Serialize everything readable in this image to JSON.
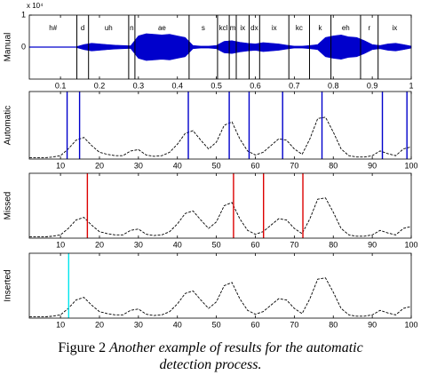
{
  "chart_data": [
    {
      "type": "waveform",
      "ylabel": "Manual",
      "multiplier_label": "x 10⁴",
      "color": "#0000cc",
      "xlim": [
        0.02,
        1
      ],
      "xticks": [
        0.1,
        0.2,
        0.3,
        0.4,
        0.5,
        0.6,
        0.7,
        0.8,
        0.9,
        1
      ],
      "ylim": [
        -1,
        1
      ],
      "yticks": [
        0,
        1
      ],
      "x": [
        0.02,
        0.04,
        0.06,
        0.08,
        0.1,
        0.12,
        0.14,
        0.16,
        0.18,
        0.2,
        0.22,
        0.24,
        0.26,
        0.28,
        0.3,
        0.32,
        0.34,
        0.36,
        0.38,
        0.4,
        0.42,
        0.44,
        0.46,
        0.48,
        0.5,
        0.52,
        0.54,
        0.56,
        0.58,
        0.6,
        0.62,
        0.64,
        0.66,
        0.68,
        0.7,
        0.72,
        0.74,
        0.76,
        0.78,
        0.8,
        0.82,
        0.84,
        0.86,
        0.88,
        0.9,
        0.92,
        0.94,
        0.96,
        0.98,
        1
      ],
      "values": [
        0.01,
        0.01,
        0.01,
        0.01,
        0.01,
        0.01,
        0.01,
        0.08,
        0.12,
        0.1,
        0.08,
        0.06,
        0.05,
        0.04,
        0.35,
        0.42,
        0.4,
        0.38,
        0.4,
        0.35,
        0.3,
        0.05,
        0.03,
        0.03,
        0.05,
        0.18,
        0.2,
        0.15,
        0.12,
        0.1,
        0.14,
        0.12,
        0.1,
        0.06,
        0.03,
        0.03,
        0.05,
        0.08,
        0.3,
        0.35,
        0.38,
        0.32,
        0.3,
        0.2,
        0.08,
        0.05,
        0.1,
        0.12,
        0.08,
        0.03
      ],
      "segments": {
        "labels": [
          "h#",
          "d",
          "uh",
          "n",
          "ae",
          "s",
          "kcl",
          "m",
          "ix",
          "dx",
          "ix",
          "kc",
          "k",
          "eh",
          "r",
          "ix"
        ],
        "boundaries": [
          0.142,
          0.172,
          0.275,
          0.291,
          0.43,
          0.503,
          0.533,
          0.551,
          0.584,
          0.611,
          0.686,
          0.739,
          0.794,
          0.87,
          0.915
        ]
      }
    },
    {
      "type": "line",
      "ylabel": "Automatic",
      "xlim": [
        2,
        100
      ],
      "xticks": [
        10,
        20,
        30,
        40,
        50,
        60,
        70,
        80,
        90,
        100
      ],
      "ylim": [
        0,
        1
      ],
      "line_color": "#000000",
      "line_style": "dashed",
      "x": [
        2,
        4,
        6,
        8,
        10,
        12,
        14,
        16,
        18,
        20,
        22,
        24,
        26,
        28,
        30,
        32,
        34,
        36,
        38,
        40,
        42,
        44,
        46,
        48,
        50,
        52,
        54,
        56,
        58,
        60,
        62,
        64,
        66,
        68,
        70,
        72,
        74,
        76,
        78,
        80,
        82,
        84,
        86,
        88,
        90,
        92,
        94,
        96,
        98,
        100
      ],
      "values": [
        0.02,
        0.02,
        0.02,
        0.03,
        0.05,
        0.15,
        0.28,
        0.32,
        0.2,
        0.1,
        0.07,
        0.05,
        0.05,
        0.12,
        0.14,
        0.06,
        0.04,
        0.05,
        0.1,
        0.22,
        0.38,
        0.42,
        0.28,
        0.15,
        0.25,
        0.5,
        0.55,
        0.3,
        0.12,
        0.06,
        0.1,
        0.2,
        0.3,
        0.28,
        0.15,
        0.07,
        0.3,
        0.6,
        0.62,
        0.4,
        0.15,
        0.05,
        0.03,
        0.03,
        0.05,
        0.12,
        0.08,
        0.05,
        0.15,
        0.18
      ],
      "events": {
        "color": "#0000cc",
        "x": [
          11.7,
          14.9,
          42.8,
          53.3,
          58.4,
          67,
          77.1,
          92.6,
          98.9
        ]
      }
    },
    {
      "type": "line",
      "ylabel": "Missed",
      "xlim": [
        2,
        100
      ],
      "xticks": [
        10,
        20,
        30,
        40,
        50,
        60,
        70,
        80,
        90,
        100
      ],
      "ylim": [
        0,
        1
      ],
      "line_color": "#000000",
      "line_style": "dashed",
      "x": [
        2,
        4,
        6,
        8,
        10,
        12,
        14,
        16,
        18,
        20,
        22,
        24,
        26,
        28,
        30,
        32,
        34,
        36,
        38,
        40,
        42,
        44,
        46,
        48,
        50,
        52,
        54,
        56,
        58,
        60,
        62,
        64,
        66,
        68,
        70,
        72,
        74,
        76,
        78,
        80,
        82,
        84,
        86,
        88,
        90,
        92,
        94,
        96,
        98,
        100
      ],
      "values": [
        0.02,
        0.02,
        0.02,
        0.03,
        0.05,
        0.15,
        0.28,
        0.32,
        0.2,
        0.1,
        0.07,
        0.05,
        0.05,
        0.12,
        0.14,
        0.06,
        0.04,
        0.05,
        0.1,
        0.22,
        0.38,
        0.42,
        0.28,
        0.15,
        0.25,
        0.5,
        0.55,
        0.3,
        0.12,
        0.06,
        0.1,
        0.2,
        0.3,
        0.28,
        0.15,
        0.07,
        0.3,
        0.6,
        0.62,
        0.4,
        0.15,
        0.05,
        0.03,
        0.03,
        0.05,
        0.12,
        0.08,
        0.05,
        0.15,
        0.18
      ],
      "events": {
        "color": "#dd0000",
        "x": [
          16.9,
          54.4,
          62.1,
          72.2
        ]
      }
    },
    {
      "type": "line",
      "ylabel": "Inserted",
      "xlim": [
        2,
        100
      ],
      "xticks": [
        10,
        20,
        30,
        40,
        50,
        60,
        70,
        80,
        90,
        100
      ],
      "ylim": [
        0,
        1
      ],
      "line_color": "#000000",
      "line_style": "dashed",
      "x": [
        2,
        4,
        6,
        8,
        10,
        12,
        14,
        16,
        18,
        20,
        22,
        24,
        26,
        28,
        30,
        32,
        34,
        36,
        38,
        40,
        42,
        44,
        46,
        48,
        50,
        52,
        54,
        56,
        58,
        60,
        62,
        64,
        66,
        68,
        70,
        72,
        74,
        76,
        78,
        80,
        82,
        84,
        86,
        88,
        90,
        92,
        94,
        96,
        98,
        100
      ],
      "values": [
        0.02,
        0.02,
        0.02,
        0.03,
        0.05,
        0.15,
        0.28,
        0.32,
        0.2,
        0.1,
        0.07,
        0.05,
        0.05,
        0.12,
        0.14,
        0.06,
        0.04,
        0.05,
        0.1,
        0.22,
        0.38,
        0.42,
        0.28,
        0.15,
        0.25,
        0.5,
        0.55,
        0.3,
        0.12,
        0.06,
        0.1,
        0.2,
        0.3,
        0.28,
        0.15,
        0.07,
        0.3,
        0.6,
        0.62,
        0.4,
        0.15,
        0.05,
        0.03,
        0.03,
        0.05,
        0.12,
        0.08,
        0.05,
        0.15,
        0.18
      ],
      "events": {
        "color": "#00e5ee",
        "x": [
          12.1
        ]
      }
    }
  ],
  "caption": {
    "number": "Figure 2",
    "text": "Another example of results for the automatic detection process."
  }
}
